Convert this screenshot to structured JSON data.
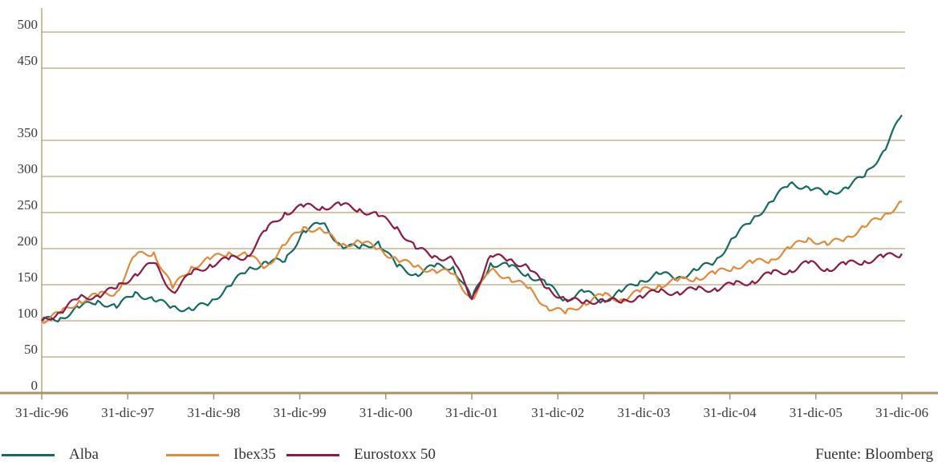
{
  "colors": {
    "alba": "#156b61",
    "ibex": "#e08a3c",
    "eurostoxx": "#8b1a45",
    "gridline": "#b9a77a",
    "axis": "#a89465"
  },
  "legend": [
    {
      "label": "Alba",
      "color": "#156b61"
    },
    {
      "label": "Ibex35",
      "color": "#e08a3c"
    },
    {
      "label": "Eurostoxx 50",
      "color": "#8b1a45"
    }
  ],
  "source": "Fuente: Bloomberg",
  "chart_data": {
    "type": "line",
    "title": "",
    "xlabel": "",
    "ylabel": "",
    "ylim": [
      0,
      500
    ],
    "yticks": [
      0,
      50,
      100,
      150,
      200,
      250,
      300,
      350,
      450,
      500
    ],
    "grid": true,
    "legend_position": "bottom",
    "xticks": [
      "31-dic-96",
      "31-dic-97",
      "31-dic-98",
      "31-dic-99",
      "31-dic-00",
      "31-dic-01",
      "31-dic-02",
      "31-dic-03",
      "31-dic-04",
      "31-dic-05",
      "31-dic-06"
    ],
    "x": [
      "dic-96",
      "mar-97",
      "jun-97",
      "sep-97",
      "dic-97",
      "feb-98",
      "abr-98",
      "jun-98",
      "ago-98",
      "oct-98",
      "dic-98",
      "mar-99",
      "jun-99",
      "sep-99",
      "nov-99",
      "dic-99",
      "feb-00",
      "abr-00",
      "jun-00",
      "sep-00",
      "dic-00",
      "mar-01",
      "jun-01",
      "sep-01",
      "dic-01",
      "mar-02",
      "jun-02",
      "sep-02",
      "dic-02",
      "mar-03",
      "jun-03",
      "sep-03",
      "dic-03",
      "mar-04",
      "jun-04",
      "sep-04",
      "dic-04",
      "mar-05",
      "jun-05",
      "sep-05",
      "dic-05",
      "feb-06",
      "abr-06",
      "jun-06",
      "ago-06",
      "oct-06",
      "dic-06"
    ],
    "series": [
      {
        "name": "Alba",
        "color": "#156b61",
        "values": [
          100,
          104,
          118,
          128,
          118,
          140,
          128,
          120,
          115,
          125,
          148,
          170,
          182,
          182,
          225,
          235,
          205,
          200,
          210,
          175,
          165,
          175,
          175,
          130,
          180,
          175,
          165,
          150,
          130,
          140,
          128,
          140,
          155,
          165,
          160,
          170,
          182,
          215,
          240,
          265,
          290,
          285,
          275,
          285,
          300,
          335,
          385
        ]
      },
      {
        "name": "Ibex35",
        "color": "#e08a3c",
        "values": [
          100,
          110,
          128,
          135,
          140,
          190,
          195,
          145,
          175,
          185,
          195,
          190,
          175,
          205,
          230,
          225,
          205,
          210,
          200,
          185,
          175,
          170,
          165,
          130,
          170,
          160,
          145,
          120,
          110,
          125,
          135,
          130,
          140,
          150,
          155,
          160,
          165,
          175,
          180,
          185,
          200,
          215,
          205,
          215,
          230,
          245,
          265
        ]
      },
      {
        "name": "Eurostoxx 50",
        "color": "#8b1a45",
        "values": [
          100,
          112,
          132,
          135,
          145,
          165,
          180,
          140,
          165,
          178,
          185,
          190,
          225,
          250,
          258,
          258,
          260,
          255,
          245,
          230,
          200,
          190,
          185,
          130,
          190,
          185,
          175,
          145,
          130,
          125,
          130,
          125,
          135,
          140,
          140,
          143,
          145,
          150,
          155,
          165,
          170,
          180,
          172,
          178,
          183,
          188,
          193
        ]
      }
    ]
  }
}
